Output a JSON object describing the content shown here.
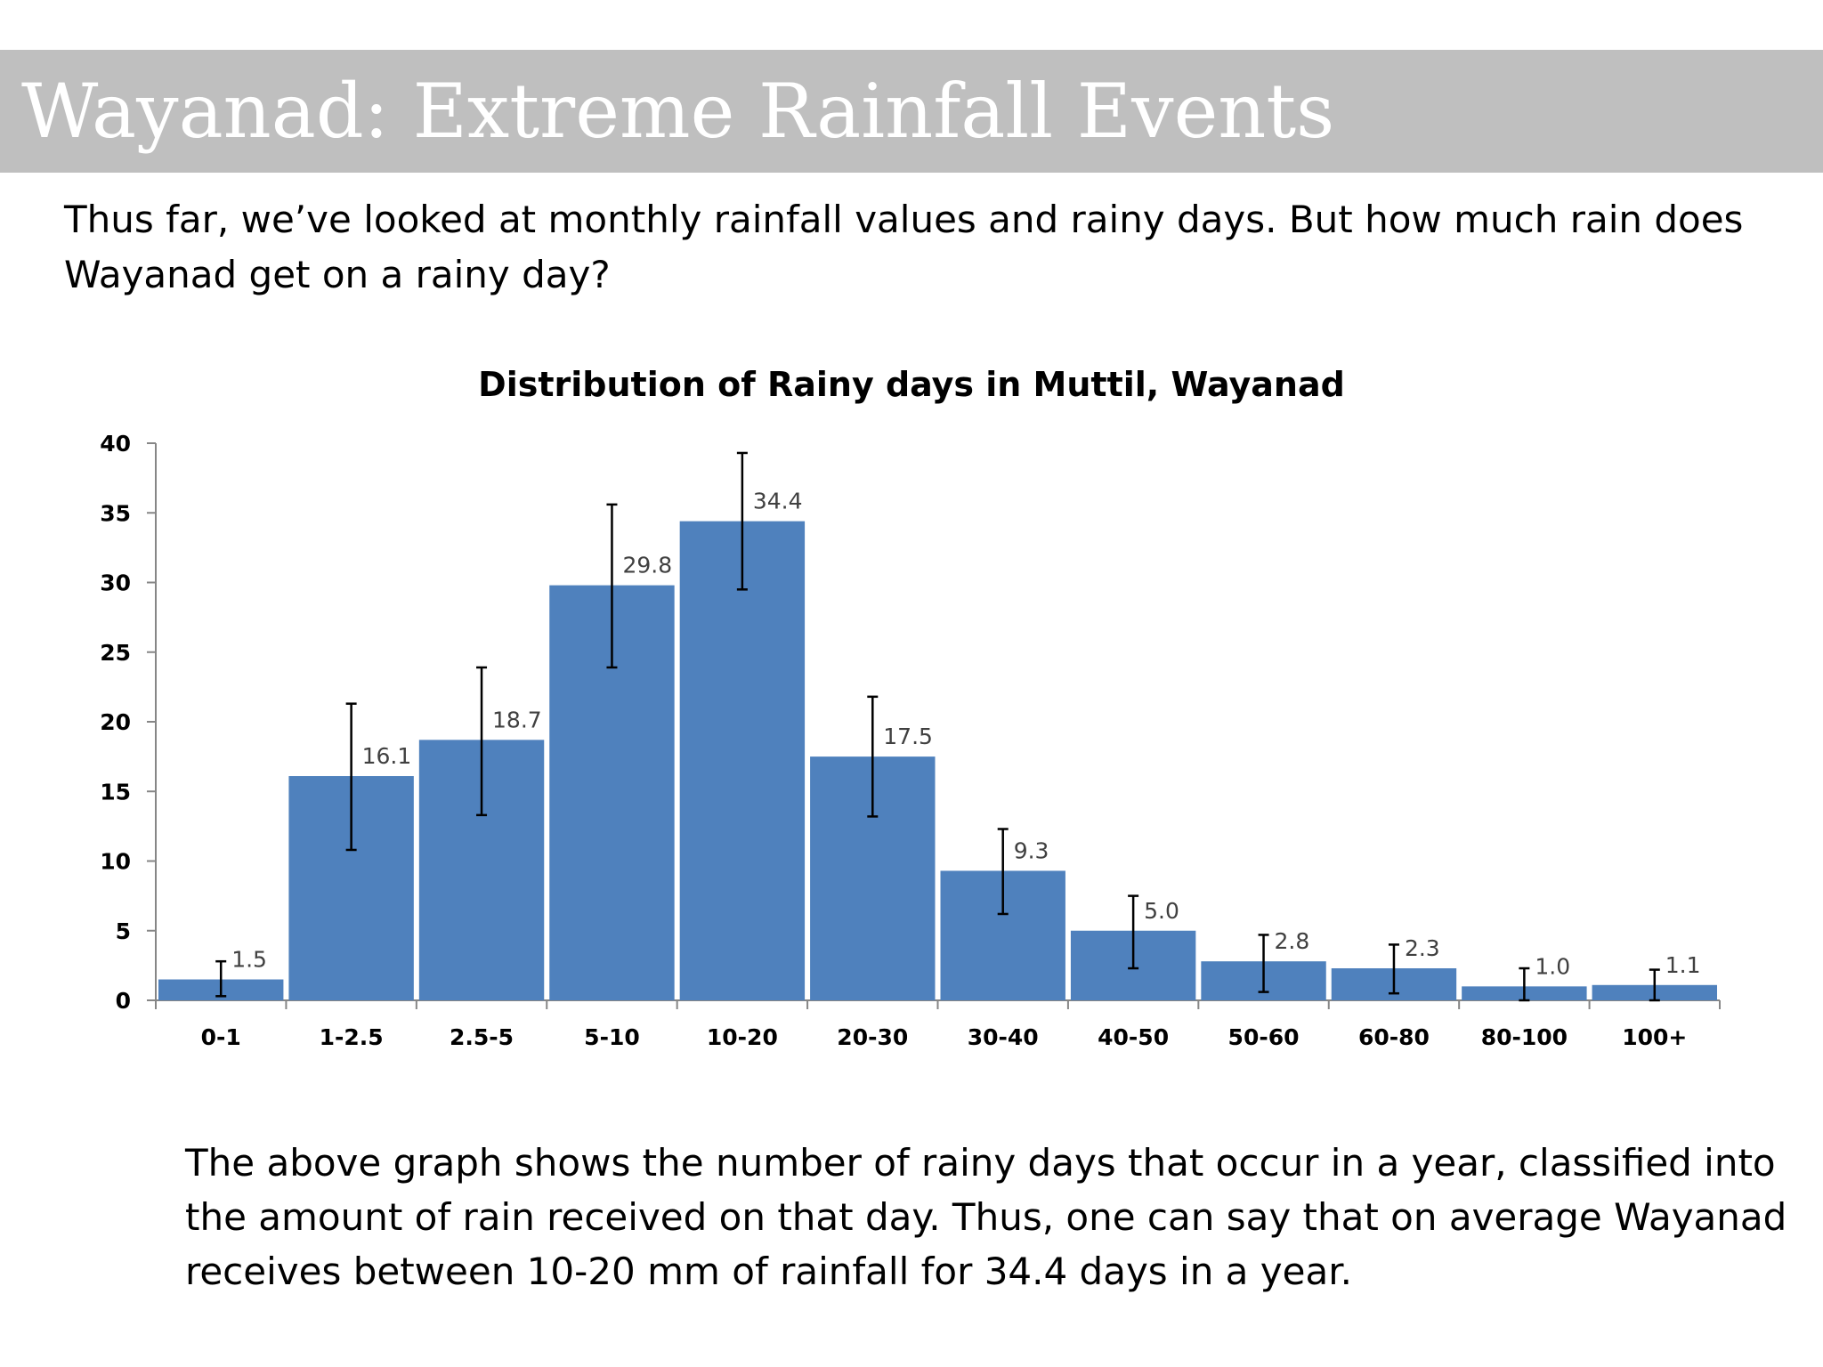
{
  "slide": {
    "title": "Wayanad: Extreme Rainfall Events",
    "intro": "Thus far, we’ve looked at monthly rainfall values and rainy days. But how much rain does Wayanad get on a rainy day?",
    "outro": "The above graph shows the number of rainy days that occur in a year, classified into the amount of rain received on that day. Thus, one can say that on average Wayanad receives between 10-20 mm of rainfall for 34.4 days in a year."
  },
  "chart_data": {
    "type": "bar",
    "title": "Distribution of Rainy days in Muttil, Wayanad",
    "xlabel": "",
    "ylabel": "",
    "categories": [
      "0-1",
      "1-2.5",
      "2.5-5",
      "5-10",
      "10-20",
      "20-30",
      "30-40",
      "40-50",
      "50-60",
      "60-80",
      "80-100",
      "100+"
    ],
    "values": [
      1.5,
      16.1,
      18.7,
      29.8,
      34.4,
      17.5,
      9.3,
      5.0,
      2.8,
      2.3,
      1.0,
      1.1
    ],
    "data_labels": [
      "1.5",
      "16.1",
      "18.7",
      "29.8",
      "34.4",
      "17.5",
      "9.3",
      "5.0",
      "2.8",
      "2.3",
      "1.0",
      "1.1"
    ],
    "error_low": [
      0.3,
      10.8,
      13.3,
      23.9,
      29.5,
      13.2,
      6.2,
      2.3,
      0.6,
      0.5,
      0.0,
      0.0
    ],
    "error_high": [
      2.8,
      21.3,
      23.9,
      35.6,
      39.3,
      21.8,
      12.3,
      7.5,
      4.7,
      4.0,
      2.3,
      2.2
    ],
    "ylim": [
      0,
      40
    ],
    "yticks": [
      0,
      5,
      10,
      15,
      20,
      25,
      30,
      35,
      40
    ],
    "ytick_labels": [
      "0",
      "5",
      "10",
      "15",
      "20",
      "25",
      "30",
      "35",
      "40"
    ],
    "grid": false,
    "legend": "none",
    "bar_color": "#4f81bd",
    "axis_color": "#868686",
    "errorbar_color": "#000000"
  }
}
